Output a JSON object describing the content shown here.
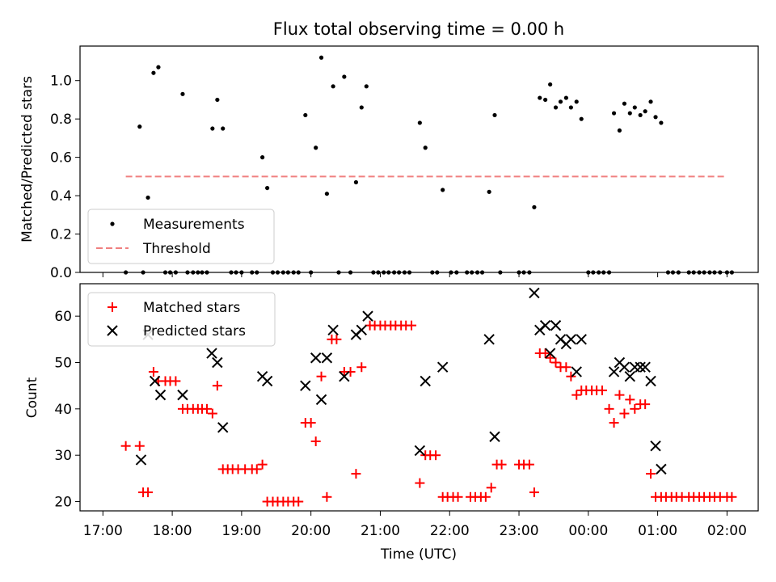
{
  "chart_data": [
    {
      "type": "scatter",
      "title": "Flux total observing time = 0.00 h",
      "xlabel": "",
      "ylabel": "Matched/Predicted stars",
      "x_unit": "hours since 17:00 UTC",
      "xlim": [
        -0.33,
        9.45
      ],
      "ylim": [
        0,
        1.18
      ],
      "yticks": [
        0.0,
        0.2,
        0.4,
        0.6,
        0.8,
        1.0
      ],
      "ytick_labels": [
        "0.0",
        "0.2",
        "0.4",
        "0.6",
        "0.8",
        "1.0"
      ],
      "legend_position": "lower-left",
      "legend": {
        "measurements": "Measurements",
        "threshold": "Threshold"
      },
      "threshold": {
        "name": "Threshold",
        "x": [
          0.33,
          9.0
        ],
        "y": 0.5,
        "color": "#f08080"
      },
      "series": [
        {
          "name": "Measurements",
          "color": "#000000",
          "points": [
            [
              0.33,
              0
            ],
            [
              0.53,
              0.76
            ],
            [
              0.58,
              0
            ],
            [
              0.65,
              0.39
            ],
            [
              0.73,
              1.04
            ],
            [
              0.8,
              1.07
            ],
            [
              0.9,
              0
            ],
            [
              0.97,
              0
            ],
            [
              1.05,
              0
            ],
            [
              1.15,
              0.93
            ],
            [
              1.22,
              0
            ],
            [
              1.3,
              0
            ],
            [
              1.37,
              0
            ],
            [
              1.43,
              0
            ],
            [
              1.5,
              0
            ],
            [
              1.58,
              0.75
            ],
            [
              1.65,
              0.9
            ],
            [
              1.73,
              0.75
            ],
            [
              1.85,
              0
            ],
            [
              1.92,
              0
            ],
            [
              2.0,
              0
            ],
            [
              2.15,
              0
            ],
            [
              2.22,
              0
            ],
            [
              2.3,
              0.6
            ],
            [
              2.37,
              0.44
            ],
            [
              2.45,
              0
            ],
            [
              2.52,
              0
            ],
            [
              2.6,
              0
            ],
            [
              2.67,
              0
            ],
            [
              2.75,
              0
            ],
            [
              2.82,
              0
            ],
            [
              2.92,
              0.82
            ],
            [
              3.0,
              0
            ],
            [
              3.07,
              0.65
            ],
            [
              3.15,
              1.12
            ],
            [
              3.23,
              0.41
            ],
            [
              3.32,
              0.97
            ],
            [
              3.4,
              0
            ],
            [
              3.48,
              1.02
            ],
            [
              3.57,
              0
            ],
            [
              3.65,
              0.47
            ],
            [
              3.73,
              0.86
            ],
            [
              3.8,
              0.97
            ],
            [
              3.9,
              0
            ],
            [
              3.97,
              0
            ],
            [
              4.05,
              0
            ],
            [
              4.12,
              0
            ],
            [
              4.2,
              0
            ],
            [
              4.27,
              0
            ],
            [
              4.35,
              0
            ],
            [
              4.42,
              0
            ],
            [
              4.57,
              0.78
            ],
            [
              4.65,
              0.65
            ],
            [
              4.75,
              0
            ],
            [
              4.82,
              0
            ],
            [
              4.9,
              0.43
            ],
            [
              5.02,
              0
            ],
            [
              5.1,
              0
            ],
            [
              5.25,
              0
            ],
            [
              5.32,
              0
            ],
            [
              5.4,
              0
            ],
            [
              5.47,
              0
            ],
            [
              5.57,
              0.42
            ],
            [
              5.65,
              0.82
            ],
            [
              5.73,
              0
            ],
            [
              6.0,
              0
            ],
            [
              6.07,
              0
            ],
            [
              6.15,
              0
            ],
            [
              6.22,
              0.34
            ],
            [
              6.3,
              0.91
            ],
            [
              6.38,
              0.9
            ],
            [
              6.45,
              0.98
            ],
            [
              6.53,
              0.86
            ],
            [
              6.6,
              0.89
            ],
            [
              6.68,
              0.91
            ],
            [
              6.75,
              0.86
            ],
            [
              6.83,
              0.89
            ],
            [
              6.9,
              0.8
            ],
            [
              7.0,
              0
            ],
            [
              7.07,
              0
            ],
            [
              7.15,
              0
            ],
            [
              7.22,
              0
            ],
            [
              7.3,
              0
            ],
            [
              7.37,
              0.83
            ],
            [
              7.45,
              0.74
            ],
            [
              7.52,
              0.88
            ],
            [
              7.6,
              0.83
            ],
            [
              7.67,
              0.86
            ],
            [
              7.75,
              0.82
            ],
            [
              7.82,
              0.84
            ],
            [
              7.9,
              0.89
            ],
            [
              7.97,
              0.81
            ],
            [
              8.05,
              0.78
            ],
            [
              8.15,
              0
            ],
            [
              8.22,
              0
            ],
            [
              8.3,
              0
            ],
            [
              8.45,
              0
            ],
            [
              8.52,
              0
            ],
            [
              8.6,
              0
            ],
            [
              8.67,
              0
            ],
            [
              8.75,
              0
            ],
            [
              8.82,
              0
            ],
            [
              8.9,
              0
            ],
            [
              9.0,
              0
            ],
            [
              9.07,
              0
            ]
          ]
        }
      ]
    },
    {
      "type": "scatter",
      "title": "",
      "xlabel": "Time (UTC)",
      "ylabel": "Count",
      "x_unit": "hours since 17:00 UTC",
      "xlim": [
        -0.33,
        9.45
      ],
      "ylim": [
        18,
        67
      ],
      "yticks": [
        20,
        30,
        40,
        50,
        60
      ],
      "ytick_labels": [
        "20",
        "30",
        "40",
        "50",
        "60"
      ],
      "xticks": [
        0,
        1,
        2,
        3,
        4,
        5,
        6,
        7,
        8,
        9
      ],
      "xtick_labels": [
        "17:00",
        "18:00",
        "19:00",
        "20:00",
        "21:00",
        "22:00",
        "23:00",
        "00:00",
        "01:00",
        "02:00"
      ],
      "legend_position": "top-left",
      "legend": {
        "matched": "Matched stars",
        "predicted": "Predicted stars"
      },
      "series": [
        {
          "name": "Matched stars",
          "color": "#ff0000",
          "marker": "+",
          "points": [
            [
              0.33,
              32
            ],
            [
              0.53,
              32
            ],
            [
              0.58,
              22
            ],
            [
              0.65,
              22
            ],
            [
              0.73,
              48
            ],
            [
              0.8,
              46
            ],
            [
              0.9,
              46
            ],
            [
              0.97,
              46
            ],
            [
              1.05,
              46
            ],
            [
              1.15,
              40
            ],
            [
              1.22,
              40
            ],
            [
              1.3,
              40
            ],
            [
              1.37,
              40
            ],
            [
              1.43,
              40
            ],
            [
              1.5,
              40
            ],
            [
              1.58,
              39
            ],
            [
              1.65,
              45
            ],
            [
              1.73,
              27
            ],
            [
              1.8,
              27
            ],
            [
              1.87,
              27
            ],
            [
              1.95,
              27
            ],
            [
              2.05,
              27
            ],
            [
              2.15,
              27
            ],
            [
              2.22,
              27
            ],
            [
              2.3,
              28
            ],
            [
              2.37,
              20
            ],
            [
              2.45,
              20
            ],
            [
              2.52,
              20
            ],
            [
              2.6,
              20
            ],
            [
              2.67,
              20
            ],
            [
              2.75,
              20
            ],
            [
              2.82,
              20
            ],
            [
              2.92,
              37
            ],
            [
              3.0,
              37
            ],
            [
              3.07,
              33
            ],
            [
              3.15,
              47
            ],
            [
              3.23,
              21
            ],
            [
              3.3,
              55
            ],
            [
              3.37,
              55
            ],
            [
              3.48,
              48
            ],
            [
              3.57,
              48
            ],
            [
              3.65,
              26
            ],
            [
              3.73,
              49
            ],
            [
              3.85,
              58
            ],
            [
              3.92,
              58
            ],
            [
              4.0,
              58
            ],
            [
              4.07,
              58
            ],
            [
              4.15,
              58
            ],
            [
              4.22,
              58
            ],
            [
              4.3,
              58
            ],
            [
              4.37,
              58
            ],
            [
              4.45,
              58
            ],
            [
              4.57,
              24
            ],
            [
              4.65,
              30
            ],
            [
              4.72,
              30
            ],
            [
              4.8,
              30
            ],
            [
              4.9,
              21
            ],
            [
              4.97,
              21
            ],
            [
              5.05,
              21
            ],
            [
              5.12,
              21
            ],
            [
              5.3,
              21
            ],
            [
              5.37,
              21
            ],
            [
              5.45,
              21
            ],
            [
              5.52,
              21
            ],
            [
              5.6,
              23
            ],
            [
              5.68,
              28
            ],
            [
              5.75,
              28
            ],
            [
              6.0,
              28
            ],
            [
              6.07,
              28
            ],
            [
              6.15,
              28
            ],
            [
              6.22,
              22
            ],
            [
              6.3,
              52
            ],
            [
              6.38,
              52
            ],
            [
              6.45,
              51
            ],
            [
              6.53,
              50
            ],
            [
              6.6,
              49
            ],
            [
              6.68,
              49
            ],
            [
              6.75,
              47
            ],
            [
              6.83,
              43
            ],
            [
              6.9,
              44
            ],
            [
              6.97,
              44
            ],
            [
              7.05,
              44
            ],
            [
              7.12,
              44
            ],
            [
              7.2,
              44
            ],
            [
              7.3,
              40
            ],
            [
              7.37,
              37
            ],
            [
              7.45,
              43
            ],
            [
              7.52,
              39
            ],
            [
              7.6,
              42
            ],
            [
              7.67,
              40
            ],
            [
              7.75,
              41
            ],
            [
              7.82,
              41
            ],
            [
              7.9,
              26
            ],
            [
              7.97,
              21
            ],
            [
              8.05,
              21
            ],
            [
              8.12,
              21
            ],
            [
              8.2,
              21
            ],
            [
              8.27,
              21
            ],
            [
              8.35,
              21
            ],
            [
              8.45,
              21
            ],
            [
              8.52,
              21
            ],
            [
              8.6,
              21
            ],
            [
              8.67,
              21
            ],
            [
              8.75,
              21
            ],
            [
              8.82,
              21
            ],
            [
              8.9,
              21
            ],
            [
              9.0,
              21
            ],
            [
              9.07,
              21
            ]
          ]
        },
        {
          "name": "Predicted stars",
          "color": "#000000",
          "marker": "x",
          "points": [
            [
              0.55,
              29
            ],
            [
              0.65,
              56
            ],
            [
              0.75,
              46
            ],
            [
              0.83,
              43
            ],
            [
              1.15,
              43
            ],
            [
              1.57,
              52
            ],
            [
              1.65,
              50
            ],
            [
              1.73,
              36
            ],
            [
              2.3,
              47
            ],
            [
              2.37,
              46
            ],
            [
              2.92,
              45
            ],
            [
              3.07,
              51
            ],
            [
              3.15,
              42
            ],
            [
              3.23,
              51
            ],
            [
              3.32,
              57
            ],
            [
              3.48,
              47
            ],
            [
              3.65,
              56
            ],
            [
              3.73,
              57
            ],
            [
              3.82,
              60
            ],
            [
              4.57,
              31
            ],
            [
              4.65,
              46
            ],
            [
              4.9,
              49
            ],
            [
              5.57,
              55
            ],
            [
              5.65,
              34
            ],
            [
              6.22,
              65
            ],
            [
              6.3,
              57
            ],
            [
              6.38,
              58
            ],
            [
              6.45,
              52
            ],
            [
              6.53,
              58
            ],
            [
              6.6,
              55
            ],
            [
              6.68,
              54
            ],
            [
              6.75,
              55
            ],
            [
              6.83,
              48
            ],
            [
              6.9,
              55
            ],
            [
              7.37,
              48
            ],
            [
              7.45,
              50
            ],
            [
              7.52,
              49
            ],
            [
              7.6,
              47
            ],
            [
              7.67,
              49
            ],
            [
              7.75,
              49
            ],
            [
              7.82,
              49
            ],
            [
              7.9,
              46
            ],
            [
              7.97,
              32
            ],
            [
              8.05,
              27
            ]
          ]
        }
      ]
    }
  ]
}
